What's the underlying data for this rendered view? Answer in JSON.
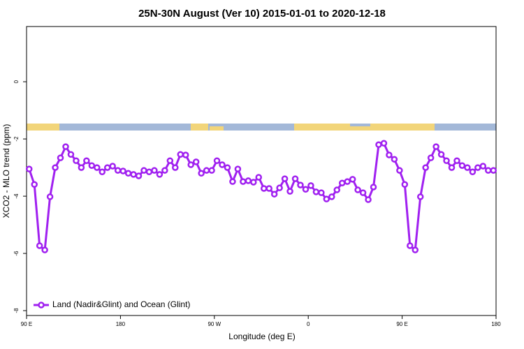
{
  "chart_data": {
    "type": "line",
    "title": "25N-30N August (Ver 10)   2015-01-01 to 2020-12-18",
    "x_label": "Longitude (deg E)",
    "y_label": "XCO2 - MLO trend (ppm)",
    "xlim": [
      90,
      540
    ],
    "ylim": [
      -8.17,
      1.93
    ],
    "xticks": [
      {
        "value": 90,
        "label": "90 E"
      },
      180,
      {
        "value": 270,
        "label": "90 W"
      },
      0,
      {
        "value": 450,
        "label": "90 E"
      },
      {
        "value": 540,
        "label": "180"
      }
    ],
    "yticks": [
      0,
      -2,
      -4,
      -6,
      -8
    ],
    "legend_position": "bottom-left",
    "x": [
      92.5,
      97.5,
      102.5,
      107.5,
      112.5,
      117.5,
      122.5,
      127.5,
      132.5,
      137.5,
      142.5,
      147.5,
      152.5,
      157.5,
      162.5,
      167.5,
      172.5,
      177.5,
      182.5,
      187.5,
      192.5,
      197.5,
      202.5,
      207.5,
      212.5,
      217.5,
      222.5,
      227.5,
      232.5,
      237.5,
      242.5,
      247.5,
      252.5,
      257.5,
      262.5,
      267.5,
      272.5,
      277.5,
      282.5,
      287.5,
      292.5,
      297.5,
      302.5,
      307.5,
      312.5,
      317.5,
      322.5,
      327.5,
      332.5,
      337.5,
      342.5,
      347.5,
      352.5,
      357.5,
      362.5,
      367.5,
      372.5,
      377.5,
      382.5,
      387.5,
      392.5,
      397.5,
      402.5,
      407.5,
      412.5,
      417.5,
      422.5,
      427.5,
      432.5,
      437.5,
      442.5,
      447.5,
      452.5,
      457.5,
      462.5,
      467.5,
      472.5,
      477.5,
      482.5,
      487.5,
      492.5,
      497.5,
      502.5,
      507.5,
      512.5,
      517.5,
      522.5,
      527.5,
      532.5,
      537.5
    ],
    "series": [
      {
        "name": "Land (Nadir&Glint) and Ocean (Glint)",
        "color": "#a020f0",
        "values": [
          -3.05,
          -3.59,
          -5.73,
          -5.88,
          -4.02,
          -3.0,
          -2.66,
          -2.27,
          -2.54,
          -2.76,
          -3.0,
          -2.76,
          -2.93,
          -3.0,
          -3.15,
          -3.0,
          -2.95,
          -3.1,
          -3.12,
          -3.2,
          -3.24,
          -3.29,
          -3.1,
          -3.15,
          -3.1,
          -3.24,
          -3.1,
          -2.76,
          -3.0,
          -2.54,
          -2.56,
          -2.9,
          -2.8,
          -3.2,
          -3.1,
          -3.1,
          -2.76,
          -2.9,
          -3.0,
          -3.49,
          -3.05,
          -3.49,
          -3.46,
          -3.51,
          -3.34,
          -3.73,
          -3.73,
          -3.93,
          -3.71,
          -3.39,
          -3.83,
          -3.39,
          -3.61,
          -3.76,
          -3.63,
          -3.85,
          -3.88,
          -4.1,
          -4.02,
          -3.78,
          -3.54,
          -3.49,
          -3.41,
          -3.78,
          -3.88,
          -4.12,
          -3.68,
          -2.2,
          -2.15,
          -2.56,
          -2.71,
          -3.1,
          -3.59,
          -5.73,
          -5.88,
          -4.02,
          -3.0,
          -2.66,
          -2.27,
          -2.54,
          -2.76,
          -3.0,
          -2.76,
          -2.93,
          -3.0,
          -3.15,
          -3.0,
          -2.95,
          -3.1,
          -3.1
        ]
      }
    ]
  }
}
